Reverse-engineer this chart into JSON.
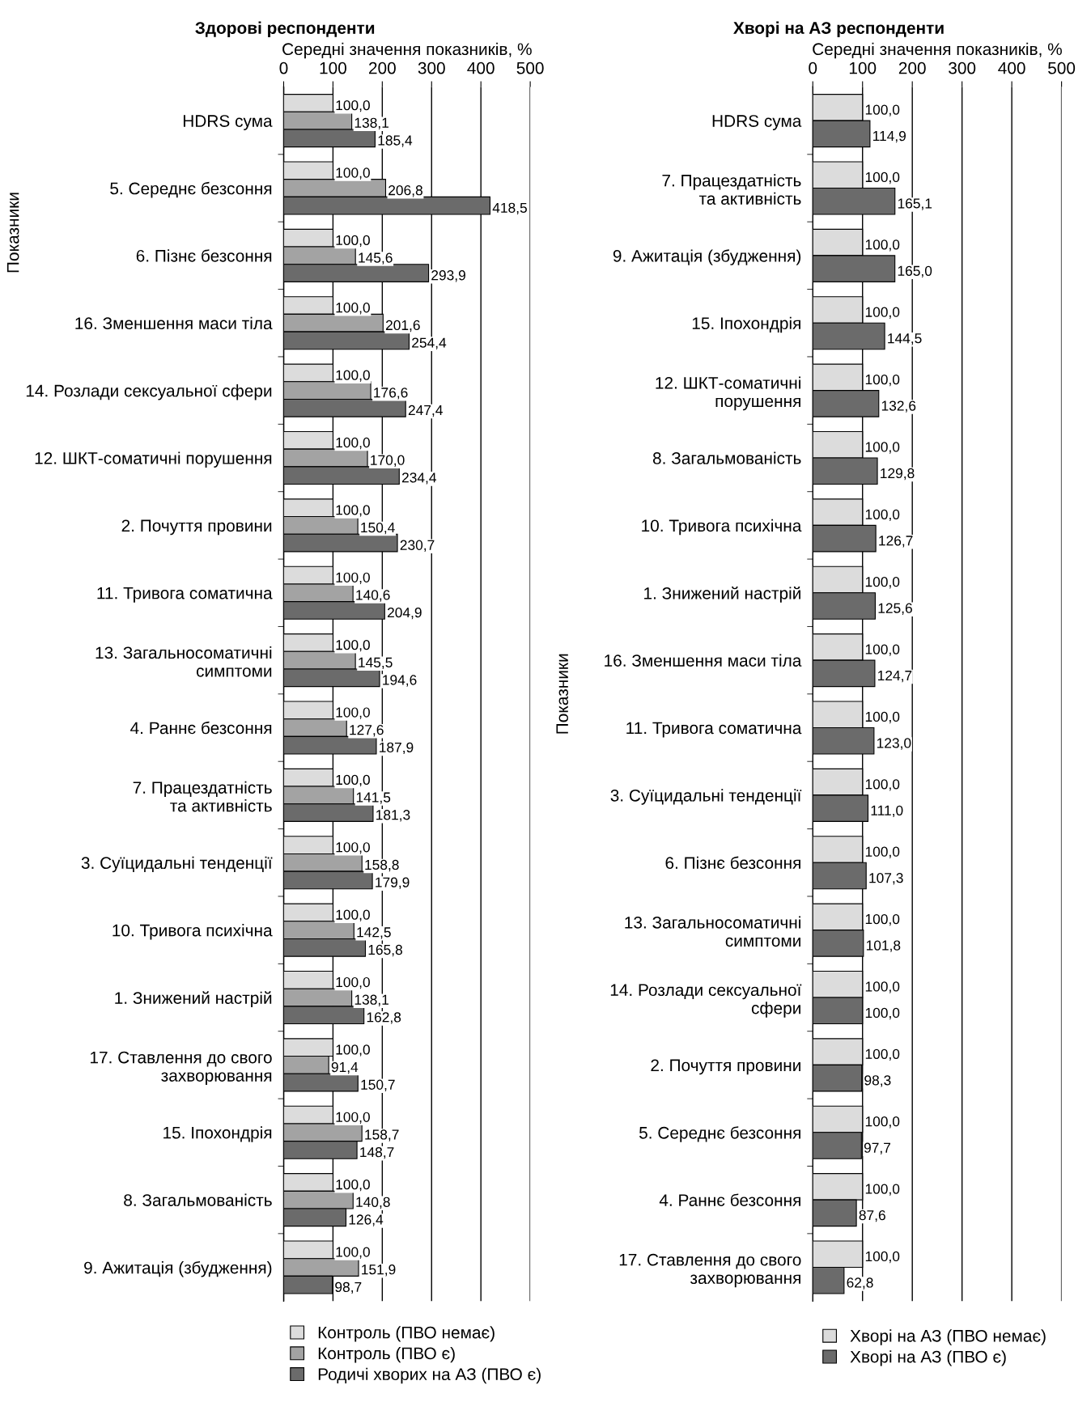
{
  "chart_data": [
    {
      "type": "bar",
      "orientation": "horizontal",
      "title": "Здорові респонденти",
      "xlabel": "Середні значення показників, %",
      "ylabel": "Показники",
      "categories": [
        "HDRS сума",
        "5. Середнє безсоння",
        "6. Пізнє безсоння",
        "16. Зменшення маси тіла",
        "14. Розлади сексуальної сфери",
        "12. ШКТ-соматичні порушення",
        "2. Почуття провини",
        "11. Тривога соматична",
        "13. Загальносоматичні\nсимптоми",
        "4. Раннє безсоння",
        "7. Працездатність\nта активність",
        "3. Суїцидальні тенденції",
        "10. Тривога психічна",
        "1. Знижений настрій",
        "17. Ставлення до свого\nзахворювання",
        "15. Іпохондрія",
        "8. Загальмованість",
        "9. Ажитація (збудження)"
      ],
      "series": [
        {
          "name": "Контроль (ПВО немає)",
          "color": "#dcdcdc",
          "values": [
            100,
            100,
            100,
            100,
            100,
            100,
            100,
            100,
            100,
            100,
            100,
            100,
            100,
            100,
            100,
            100,
            100,
            100
          ],
          "value_labels": [
            "100,0",
            "100,0",
            "100,0",
            "100,0",
            "100,0",
            "100,0",
            "100,0",
            "100,0",
            "100,0",
            "100,0",
            "100,0",
            "100,0",
            "100,0",
            "100,0",
            "100,0",
            "100,0",
            "100,0",
            "100,0"
          ]
        },
        {
          "name": "Контроль (ПВО є)",
          "color": "#a3a3a3",
          "values": [
            138.1,
            206.8,
            145.6,
            201.6,
            176.6,
            170.0,
            150.4,
            140.6,
            145.5,
            127.6,
            141.5,
            158.8,
            142.5,
            138.1,
            91.4,
            158.7,
            140.8,
            151.9
          ],
          "value_labels": [
            "138,1",
            "206,8",
            "145,6",
            "201,6",
            "176,6",
            "170,0",
            "150,4",
            "140,6",
            "145,5",
            "127,6",
            "141,5",
            "158,8",
            "142,5",
            "138,1",
            "91,4",
            "158,7",
            "140,8",
            "151,9"
          ]
        },
        {
          "name": "Родичі хворих на АЗ (ПВО є)",
          "color": "#6b6b6b",
          "values": [
            185.4,
            418.5,
            293.9,
            254.4,
            247.4,
            234.4,
            230.7,
            204.9,
            194.6,
            187.9,
            181.3,
            179.9,
            165.8,
            162.8,
            150.7,
            148.7,
            126.4,
            98.7
          ],
          "value_labels": [
            "185,4",
            "418,5",
            "293,9",
            "254,4",
            "247,4",
            "234,4",
            "230,7",
            "204,9",
            "194,6",
            "187,9",
            "181,3",
            "179,9",
            "165,8",
            "162,8",
            "150,7",
            "148,7",
            "126,4",
            "98,7"
          ]
        }
      ],
      "xlim": [
        0,
        500
      ],
      "xticks": [
        0,
        100,
        200,
        300,
        400,
        500
      ],
      "grid": "x",
      "legend": "bottom"
    },
    {
      "type": "bar",
      "orientation": "horizontal",
      "title": "Хворі на АЗ респонденти",
      "xlabel": "Середні значення показників, %",
      "ylabel": "Показники",
      "categories": [
        "HDRS сума",
        "7. Працездатність\nта активність",
        "9. Ажитація (збудження)",
        "15. Іпохондрія",
        "12. ШКТ-соматичні\nпорушення",
        "8. Загальмованість",
        "10. Тривога психічна",
        "1. Знижений настрій",
        "16. Зменшення маси тіла",
        "11. Тривога соматична",
        "3. Суїцидальні тенденції",
        "6. Пізнє безсоння",
        "13. Загальносоматичні\nсимптоми",
        "14. Розлади сексуальної\nсфери",
        "2. Почуття провини",
        "5. Середнє безсоння",
        "4. Раннє безсоння",
        "17. Ставлення до свого\nзахворювання"
      ],
      "series": [
        {
          "name": "Хворі на АЗ (ПВО немає)",
          "color": "#dcdcdc",
          "values": [
            100,
            100,
            100,
            100,
            100,
            100,
            100,
            100,
            100,
            100,
            100,
            100,
            100,
            100,
            100,
            100,
            100,
            100
          ],
          "value_labels": [
            "100,0",
            "100,0",
            "100,0",
            "100,0",
            "100,0",
            "100,0",
            "100,0",
            "100,0",
            "100,0",
            "100,0",
            "100,0",
            "100,0",
            "100,0",
            "100,0",
            "100,0",
            "100,0",
            "100,0",
            "100,0"
          ]
        },
        {
          "name": "Хворі на АЗ (ПВО є)",
          "color": "#6b6b6b",
          "values": [
            114.9,
            165.1,
            165.0,
            144.5,
            132.6,
            129.8,
            126.7,
            125.6,
            124.7,
            123.0,
            111.0,
            107.3,
            101.8,
            100.0,
            98.3,
            97.7,
            87.6,
            62.8
          ],
          "value_labels": [
            "114,9",
            "165,1",
            "165,0",
            "144,5",
            "132,6",
            "129,8",
            "126,7",
            "125,6",
            "124,7",
            "123,0",
            "111,0",
            "107,3",
            "101,8",
            "100,0",
            "98,3",
            "97,7",
            "87,6",
            "62,8"
          ]
        }
      ],
      "xlim": [
        0,
        500
      ],
      "xticks": [
        0,
        100,
        200,
        300,
        400,
        500
      ],
      "grid": "x",
      "legend": "bottom"
    }
  ]
}
